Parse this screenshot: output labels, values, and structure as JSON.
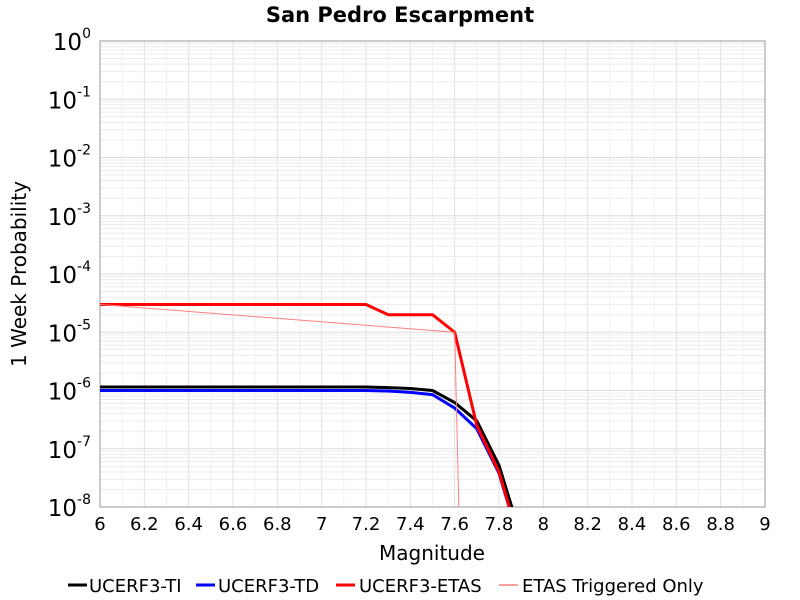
{
  "chart_data": {
    "type": "line",
    "title": "San Pedro Escarpment",
    "xlabel": "Magnitude",
    "ylabel": "1 Week Probability",
    "xlim": [
      6,
      9
    ],
    "ylim": [
      1e-08,
      1
    ],
    "yscale": "log",
    "grid": true,
    "legend_position": "bottom",
    "x_ticks": [
      "6",
      "6.2",
      "6.4",
      "6.6",
      "6.8",
      "7",
      "7.2",
      "7.4",
      "7.6",
      "7.8",
      "8",
      "8.2",
      "8.4",
      "8.6",
      "8.8",
      "9"
    ],
    "y_ticks": [
      {
        "base": "10",
        "exp": "0"
      },
      {
        "base": "10",
        "exp": "-1"
      },
      {
        "base": "10",
        "exp": "-2"
      },
      {
        "base": "10",
        "exp": "-3"
      },
      {
        "base": "10",
        "exp": "-4"
      },
      {
        "base": "10",
        "exp": "-5"
      },
      {
        "base": "10",
        "exp": "-6"
      },
      {
        "base": "10",
        "exp": "-7"
      },
      {
        "base": "10",
        "exp": "-8"
      }
    ],
    "series": [
      {
        "name": "UCERF3-TI",
        "color": "#000000",
        "width": 3,
        "x": [
          6.0,
          7.2,
          7.3,
          7.4,
          7.5,
          7.6,
          7.7,
          7.8,
          7.9
        ],
        "y": [
          1.15e-06,
          1.15e-06,
          1.12e-06,
          1.08e-06,
          1e-06,
          6.2e-07,
          3e-07,
          5.2e-08,
          3e-09
        ]
      },
      {
        "name": "UCERF3-TD",
        "color": "#0000ff",
        "width": 3,
        "x": [
          6.0,
          7.2,
          7.3,
          7.4,
          7.5,
          7.6,
          7.7,
          7.8,
          7.9
        ],
        "y": [
          1e-06,
          1e-06,
          9.8e-07,
          9.3e-07,
          8.5e-07,
          5e-07,
          2.2e-07,
          3.8e-08,
          2e-09
        ]
      },
      {
        "name": "UCERF3-ETAS",
        "color": "#ff0000",
        "width": 3,
        "x": [
          6.0,
          7.2,
          7.3,
          7.5,
          7.6,
          7.7,
          7.8,
          7.9
        ],
        "y": [
          3e-05,
          3e-05,
          2e-05,
          2e-05,
          1e-05,
          2.5e-07,
          4e-08,
          2e-09
        ]
      },
      {
        "name": "ETAS Triggered Only",
        "color": "#ff8080",
        "width": 1,
        "x": [
          6.0,
          7.6,
          7.625
        ],
        "y": [
          3e-05,
          1e-05,
          1e-09
        ]
      }
    ]
  }
}
